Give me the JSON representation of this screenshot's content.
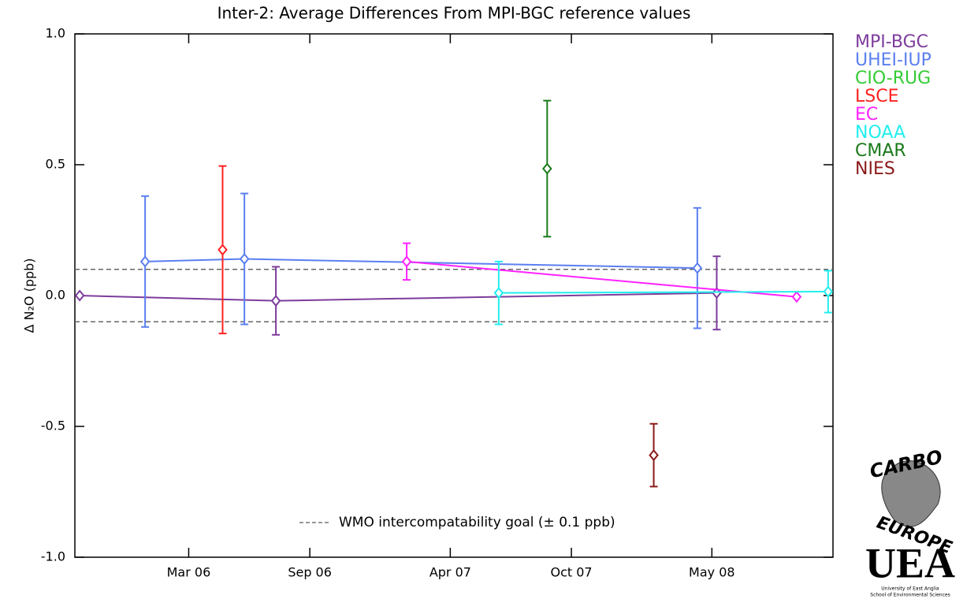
{
  "chart_data": {
    "type": "errorbar-line",
    "title": "Inter-2: Average Differences From MPI-BGC reference values",
    "y_label": "Δ N₂O (ppb)",
    "xlim": [
      2005.7,
      2008.83
    ],
    "xticks": [
      {
        "value": 2006.17,
        "label": "Mar 06"
      },
      {
        "value": 2006.67,
        "label": "Sep 06"
      },
      {
        "value": 2007.25,
        "label": "Apr 07"
      },
      {
        "value": 2007.75,
        "label": "Oct 07"
      },
      {
        "value": 2008.33,
        "label": "May 08"
      }
    ],
    "ylim": [
      -1.0,
      1.0
    ],
    "yticks": [
      {
        "value": -1.0,
        "label": "-1.0"
      },
      -0.5,
      {
        "value": 0.0,
        "label": "0.0"
      },
      0.5,
      {
        "value": 1.0,
        "label": "1.0"
      }
    ],
    "reference_lines": [
      0.1,
      -0.1
    ],
    "annotation": "WMO intercompatability goal (± 0.1 ppb)",
    "legend_position": "outside-right",
    "series": [
      {
        "name": "MPI-BGC",
        "color": "#7d3c9c",
        "x": [
          2005.72,
          2006.53,
          2008.35
        ],
        "values": [
          0,
          -0.02,
          0.01
        ],
        "errors": [
          null,
          0.13,
          0.14
        ]
      },
      {
        "name": "UHEI-IUP",
        "color": "#5b7ff0",
        "x": [
          2005.99,
          2006.4,
          2008.27
        ],
        "values": [
          0.13,
          0.14,
          0.105
        ],
        "errors": [
          0.25,
          0.25,
          0.23
        ]
      },
      {
        "name": "CIO-RUG",
        "color": "#33cc33",
        "x": [],
        "values": [],
        "errors": []
      },
      {
        "name": "LSCE",
        "color": "#ff2222",
        "x": [
          2006.31
        ],
        "values": [
          0.175
        ],
        "errors": [
          0.32
        ]
      },
      {
        "name": "EC",
        "color": "#ff22ff",
        "x": [
          2007.07,
          2008.68
        ],
        "values": [
          0.13,
          -0.005
        ],
        "errors": [
          0.07,
          null
        ]
      },
      {
        "name": "NOAA",
        "color": "#22eeee",
        "x": [
          2007.45,
          2008.81
        ],
        "values": [
          0.01,
          0.015
        ],
        "errors": [
          0.12,
          0.08
        ]
      },
      {
        "name": "CMAR",
        "color": "#1a7a1a",
        "x": [
          2007.65
        ],
        "values": [
          0.485
        ],
        "errors": [
          0.26
        ]
      },
      {
        "name": "NIES",
        "color": "#8b1a1a",
        "x": [
          2008.09
        ],
        "values": [
          -0.61
        ],
        "errors": [
          0.12
        ]
      }
    ]
  },
  "logos": {
    "carbo_top": "CARBO",
    "carbo_bottom": "EUROPE",
    "uea": "UEA",
    "uea_line1": "University of East Anglia",
    "uea_line2": "School of Environmental Sciences"
  }
}
